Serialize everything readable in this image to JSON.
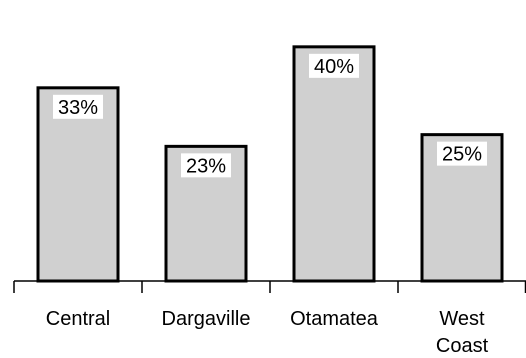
{
  "chart_data": {
    "type": "bar",
    "categories": [
      [
        "Central"
      ],
      [
        "Dargaville"
      ],
      [
        "Otamatea"
      ],
      [
        "West",
        "Coast"
      ]
    ],
    "values": [
      33,
      23,
      40,
      25
    ],
    "data_labels": [
      "33%",
      "23%",
      "40%",
      "25%"
    ],
    "title": "",
    "xlabel": "",
    "ylabel": "",
    "ylim": [
      0,
      48
    ],
    "grid": false,
    "legend": "none",
    "colors": {
      "bar_fill": "#d0d0d0",
      "bar_stroke": "#000000",
      "label_background": "#ffffff",
      "axis": "#000000"
    }
  }
}
